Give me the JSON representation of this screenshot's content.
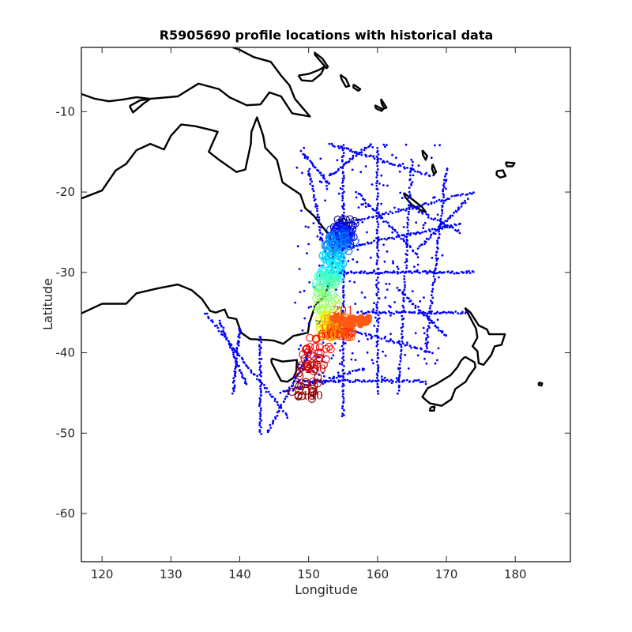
{
  "chart_data": {
    "type": "scatter",
    "title": "R5905690 profile locations with historical data",
    "xlabel": "Longitude",
    "ylabel": "Latitude",
    "xlim": [
      117,
      188
    ],
    "ylim": [
      -66,
      -2
    ],
    "xticks": [
      120,
      130,
      140,
      150,
      160,
      170,
      180
    ],
    "yticks": [
      -10,
      -20,
      -30,
      -40,
      -50,
      -60
    ],
    "grid": false,
    "colors": {
      "historical": "#0000ff",
      "coast": "#000000"
    },
    "profile_labels": [
      "2",
      "10",
      "214",
      "10",
      "201",
      "250",
      "2140"
    ]
  }
}
